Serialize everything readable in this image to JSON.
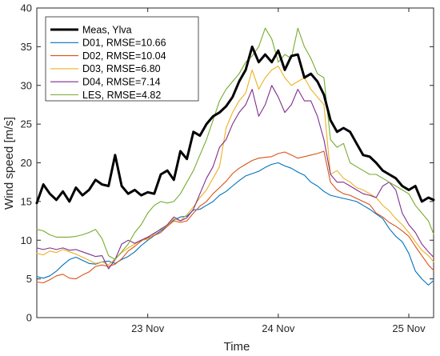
{
  "chart_data": {
    "type": "line",
    "xlabel": "Time",
    "ylabel": "Wind speed [m/s]",
    "ylim": [
      0,
      40
    ],
    "yticks": [
      0,
      5,
      10,
      15,
      20,
      25,
      30,
      35,
      40
    ],
    "xlim": [
      22.15,
      25.19
    ],
    "xticks": [
      {
        "value": 23,
        "label": "23 Nov"
      },
      {
        "value": 24,
        "label": "24 Nov"
      },
      {
        "value": 25,
        "label": "25 Nov"
      }
    ],
    "grid": false,
    "legend_position": "top-left",
    "series": [
      {
        "name": "Meas, Ylva",
        "color": "#000000",
        "width": 3.0,
        "x": [
          22.15,
          22.2,
          22.25,
          22.3,
          22.35,
          22.4,
          22.45,
          22.5,
          22.55,
          22.6,
          22.65,
          22.7,
          22.75,
          22.8,
          22.85,
          22.9,
          22.95,
          23.0,
          23.05,
          23.1,
          23.15,
          23.2,
          23.25,
          23.3,
          23.35,
          23.4,
          23.45,
          23.5,
          23.55,
          23.6,
          23.65,
          23.7,
          23.75,
          23.8,
          23.85,
          23.9,
          23.95,
          24.0,
          24.05,
          24.1,
          24.15,
          24.2,
          24.25,
          24.3,
          24.35,
          24.4,
          24.45,
          24.5,
          24.55,
          24.6,
          24.65,
          24.7,
          24.75,
          24.8,
          24.85,
          24.9,
          24.95,
          25.0,
          25.05,
          25.1,
          25.15,
          25.19
        ],
        "y": [
          14.8,
          17.2,
          16.0,
          15.2,
          16.3,
          15.0,
          16.8,
          15.8,
          16.5,
          17.8,
          17.2,
          17.0,
          21.0,
          17.0,
          16.0,
          16.5,
          15.8,
          16.2,
          16.0,
          18.5,
          19.0,
          17.8,
          21.5,
          20.5,
          24.0,
          23.5,
          25.0,
          26.0,
          26.5,
          27.3,
          28.5,
          30.5,
          32.0,
          35.0,
          33.0,
          34.0,
          33.0,
          34.5,
          32.0,
          33.8,
          34.0,
          31.0,
          31.5,
          30.5,
          28.8,
          25.5,
          24.0,
          24.5,
          24.0,
          22.5,
          21.0,
          20.8,
          20.0,
          19.0,
          18.5,
          18.0,
          17.0,
          16.5,
          17.0,
          15.0,
          15.5,
          15.2
        ]
      },
      {
        "name": "D01, RMSE=10.66",
        "color": "#0072BD",
        "width": 1.1,
        "x": [
          22.15,
          22.2,
          22.25,
          22.3,
          22.35,
          22.4,
          22.45,
          22.5,
          22.55,
          22.6,
          22.65,
          22.7,
          22.75,
          22.8,
          22.85,
          22.9,
          22.95,
          23.0,
          23.05,
          23.1,
          23.15,
          23.2,
          23.25,
          23.3,
          23.35,
          23.4,
          23.45,
          23.5,
          23.55,
          23.6,
          23.65,
          23.7,
          23.75,
          23.8,
          23.85,
          23.9,
          23.95,
          24.0,
          24.05,
          24.1,
          24.15,
          24.2,
          24.25,
          24.3,
          24.35,
          24.4,
          24.45,
          24.5,
          24.55,
          24.6,
          24.65,
          24.7,
          24.75,
          24.8,
          24.85,
          24.9,
          24.95,
          25.0,
          25.05,
          25.1,
          25.15,
          25.19
        ],
        "y": [
          5.3,
          5.1,
          5.4,
          6.0,
          6.8,
          7.5,
          7.8,
          7.4,
          7.0,
          6.9,
          7.2,
          7.3,
          7.0,
          7.5,
          7.9,
          8.5,
          9.3,
          10.0,
          10.6,
          11.2,
          11.8,
          12.6,
          13.0,
          13.1,
          13.9,
          14.0,
          14.5,
          15.0,
          15.8,
          16.3,
          17.0,
          17.7,
          18.3,
          18.6,
          18.9,
          19.4,
          19.8,
          20.0,
          19.6,
          19.3,
          18.8,
          18.4,
          17.5,
          17.0,
          16.3,
          15.8,
          15.6,
          15.4,
          15.2,
          15.0,
          14.5,
          14.0,
          13.4,
          12.8,
          11.5,
          10.5,
          9.8,
          8.3,
          6.0,
          5.0,
          4.2,
          4.8
        ]
      },
      {
        "name": "D02, RMSE=10.04",
        "color": "#D95319",
        "width": 1.1,
        "x": [
          22.15,
          22.2,
          22.25,
          22.3,
          22.35,
          22.4,
          22.45,
          22.5,
          22.55,
          22.6,
          22.65,
          22.7,
          22.75,
          22.8,
          22.85,
          22.9,
          22.95,
          23.0,
          23.05,
          23.1,
          23.15,
          23.2,
          23.25,
          23.3,
          23.35,
          23.4,
          23.45,
          23.5,
          23.55,
          23.6,
          23.65,
          23.7,
          23.75,
          23.8,
          23.85,
          23.9,
          23.95,
          24.0,
          24.05,
          24.1,
          24.15,
          24.2,
          24.25,
          24.3,
          24.35,
          24.4,
          24.45,
          24.5,
          24.55,
          24.6,
          24.65,
          24.7,
          24.75,
          24.8,
          24.85,
          24.9,
          24.95,
          25.0,
          25.05,
          25.1,
          25.15,
          25.19
        ],
        "y": [
          4.6,
          4.5,
          4.9,
          5.4,
          5.6,
          5.1,
          5.0,
          5.5,
          5.9,
          6.6,
          6.8,
          6.6,
          6.9,
          7.6,
          8.6,
          9.2,
          9.9,
          10.3,
          10.6,
          11.0,
          11.8,
          12.5,
          12.3,
          12.5,
          13.5,
          14.4,
          15.0,
          16.0,
          16.8,
          17.6,
          18.6,
          19.3,
          19.8,
          20.3,
          20.6,
          20.7,
          20.8,
          21.2,
          21.4,
          21.0,
          20.6,
          20.8,
          21.0,
          21.2,
          21.5,
          17.5,
          16.5,
          16.0,
          15.8,
          15.4,
          15.0,
          14.6,
          13.5,
          13.0,
          12.3,
          11.8,
          11.2,
          10.5,
          9.2,
          8.0,
          6.8,
          6.1
        ]
      },
      {
        "name": "D03, RMSE=6.80",
        "color": "#EDB120",
        "width": 1.1,
        "x": [
          22.15,
          22.2,
          22.25,
          22.3,
          22.35,
          22.4,
          22.45,
          22.5,
          22.55,
          22.6,
          22.65,
          22.7,
          22.75,
          22.8,
          22.85,
          22.9,
          22.95,
          23.0,
          23.05,
          23.1,
          23.15,
          23.2,
          23.25,
          23.3,
          23.35,
          23.4,
          23.45,
          23.5,
          23.55,
          23.6,
          23.65,
          23.7,
          23.75,
          23.8,
          23.85,
          23.9,
          23.95,
          24.0,
          24.05,
          24.1,
          24.15,
          24.2,
          24.25,
          24.3,
          24.35,
          24.4,
          24.45,
          24.5,
          24.55,
          24.6,
          24.65,
          24.7,
          24.75,
          24.8,
          24.85,
          24.9,
          24.95,
          25.0,
          25.05,
          25.1,
          25.15,
          25.19
        ],
        "y": [
          8.3,
          8.1,
          8.6,
          8.4,
          8.8,
          8.5,
          8.2,
          7.8,
          7.4,
          7.0,
          7.2,
          6.8,
          7.6,
          8.4,
          9.0,
          9.5,
          10.0,
          10.1,
          10.8,
          11.5,
          11.9,
          12.8,
          12.5,
          13.3,
          14.3,
          15.5,
          16.5,
          18.0,
          19.5,
          24.5,
          26.5,
          28.0,
          29.0,
          32.0,
          29.5,
          31.0,
          32.0,
          32.5,
          31.0,
          30.0,
          30.5,
          31.0,
          29.5,
          28.5,
          27.5,
          18.5,
          19.0,
          18.0,
          17.5,
          16.8,
          16.5,
          16.0,
          15.5,
          14.5,
          13.8,
          12.8,
          12.0,
          11.0,
          9.8,
          8.7,
          8.0,
          7.2
        ]
      },
      {
        "name": "D04, RMSE=7.14",
        "color": "#7E2F8E",
        "width": 1.1,
        "x": [
          22.15,
          22.2,
          22.25,
          22.3,
          22.35,
          22.4,
          22.45,
          22.5,
          22.55,
          22.6,
          22.65,
          22.7,
          22.75,
          22.8,
          22.85,
          22.9,
          22.95,
          23.0,
          23.05,
          23.1,
          23.15,
          23.2,
          23.25,
          23.3,
          23.35,
          23.4,
          23.45,
          23.5,
          23.55,
          23.6,
          23.65,
          23.7,
          23.75,
          23.8,
          23.85,
          23.9,
          23.95,
          24.0,
          24.05,
          24.1,
          24.15,
          24.2,
          24.25,
          24.3,
          24.35,
          24.4,
          24.45,
          24.5,
          24.55,
          24.6,
          24.65,
          24.7,
          24.75,
          24.8,
          24.85,
          24.9,
          24.95,
          25.0,
          25.05,
          25.1,
          25.15,
          25.19
        ],
        "y": [
          9.0,
          8.8,
          9.0,
          8.8,
          9.0,
          8.7,
          8.8,
          8.5,
          8.2,
          7.9,
          8.0,
          6.3,
          7.5,
          9.5,
          10.0,
          9.6,
          10.0,
          10.4,
          10.9,
          11.4,
          12.0,
          13.0,
          12.5,
          12.9,
          14.0,
          16.0,
          18.0,
          19.5,
          22.0,
          23.0,
          25.0,
          26.5,
          27.5,
          29.5,
          26.0,
          27.5,
          30.0,
          28.5,
          26.5,
          27.5,
          29.5,
          28.0,
          28.0,
          26.0,
          23.0,
          18.5,
          17.5,
          17.5,
          17.0,
          16.5,
          16.0,
          15.8,
          15.5,
          17.0,
          17.5,
          16.5,
          13.5,
          12.0,
          11.0,
          9.5,
          8.5,
          7.8
        ]
      },
      {
        "name": "LES, RMSE=4.82",
        "color": "#77AC30",
        "width": 1.1,
        "x": [
          22.15,
          22.2,
          22.25,
          22.3,
          22.35,
          22.4,
          22.45,
          22.5,
          22.55,
          22.6,
          22.65,
          22.7,
          22.75,
          22.8,
          22.85,
          22.9,
          22.95,
          23.0,
          23.05,
          23.1,
          23.15,
          23.2,
          23.25,
          23.3,
          23.35,
          23.4,
          23.45,
          23.5,
          23.55,
          23.6,
          23.65,
          23.7,
          23.75,
          23.8,
          23.85,
          23.9,
          23.95,
          24.0,
          24.05,
          24.1,
          24.15,
          24.2,
          24.25,
          24.3,
          24.35,
          24.4,
          24.45,
          24.5,
          24.55,
          24.6,
          24.65,
          24.7,
          24.75,
          24.8,
          24.85,
          24.9,
          24.95,
          25.0,
          25.05,
          25.1,
          25.15,
          25.19
        ],
        "y": [
          11.4,
          11.2,
          10.7,
          10.4,
          10.4,
          10.4,
          10.5,
          10.7,
          11.0,
          11.4,
          10.2,
          8.0,
          7.5,
          8.5,
          9.5,
          11.0,
          12.0,
          13.5,
          14.5,
          15.0,
          14.8,
          15.0,
          16.0,
          17.5,
          19.0,
          21.0,
          23.0,
          25.5,
          28.0,
          29.5,
          30.5,
          31.5,
          33.0,
          33.8,
          35.0,
          37.4,
          36.0,
          33.0,
          34.0,
          33.5,
          37.4,
          35.0,
          33.5,
          31.5,
          31.0,
          23.0,
          22.0,
          22.5,
          20.0,
          19.5,
          19.0,
          18.5,
          18.5,
          18.0,
          17.5,
          17.0,
          16.5,
          16.0,
          14.5,
          13.5,
          12.5,
          10.8
        ]
      }
    ]
  }
}
